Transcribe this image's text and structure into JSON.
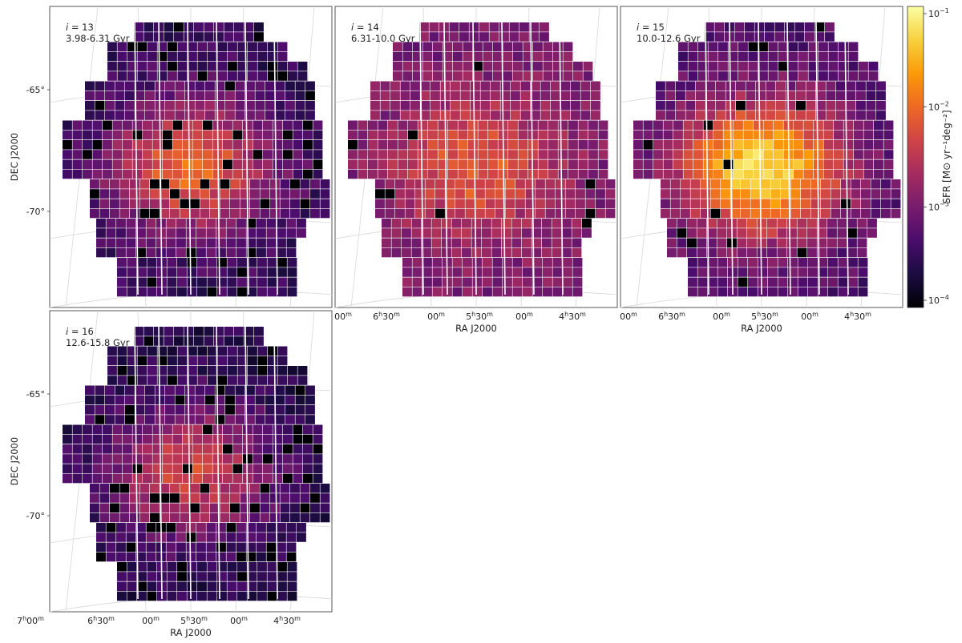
{
  "figure": {
    "axes": {
      "ra_label": "RA J2000",
      "dec_label": "DEC J2000"
    },
    "dec_ticks": [
      "-65°",
      "-70°"
    ],
    "ra_ticks": [
      {
        "h": "7",
        "m": "00"
      },
      {
        "h": "6",
        "m": "30"
      },
      {
        "h": "",
        "m": "00"
      },
      {
        "h": "5",
        "m": "30"
      },
      {
        "h": "",
        "m": "00"
      },
      {
        "h": "4",
        "m": "30"
      }
    ],
    "panels_ra_first_tick_text": "00",
    "colorbar": {
      "label": "SFR [M⊙ yr⁻¹deg⁻²]",
      "scale": "log",
      "ticks": [
        {
          "base": "10",
          "exp": "−1"
        },
        {
          "base": "10",
          "exp": "−2"
        },
        {
          "base": "10",
          "exp": "−3"
        },
        {
          "base": "10",
          "exp": "−4"
        }
      ],
      "colors": [
        "#000004",
        "#1b0c41",
        "#4a0c6b",
        "#781c6d",
        "#a52c60",
        "#cf4446",
        "#ed6925",
        "#fb9b06",
        "#f7d13d",
        "#fcffa4"
      ]
    }
  },
  "chart_data": [
    {
      "type": "heatmap",
      "panel_label": "i = 13",
      "i": "i",
      "i_value": "= 13",
      "age_range": "3.98-6.31 Gyr",
      "peak_log10_sfr": -2.0,
      "hole_fraction": 0.1,
      "bg_log10_sfr": -3.5,
      "peak_bin_note": "",
      "xlabel": "",
      "ylabel": "DEC J2000",
      "clim": [
        0.0001,
        0.1
      ]
    },
    {
      "type": "heatmap",
      "panel_label": "i = 14",
      "i": "i",
      "i_value": "= 14",
      "age_range": "6.31-10.0 Gyr",
      "peak_log10_sfr": -2.1,
      "hole_fraction": 0.015,
      "bg_log10_sfr": -3.0,
      "peak_bin_note": "",
      "xlabel": "RA J2000",
      "ylabel": "",
      "clim": [
        0.0001,
        0.1
      ]
    },
    {
      "type": "heatmap",
      "panel_label": "i = 15",
      "i": "i",
      "i_value": "= 15",
      "age_range": "10.0-12.6 Gyr",
      "peak_log10_sfr": -1.2,
      "hole_fraction": 0.02,
      "bg_log10_sfr": -3.3,
      "peak_bin_note": "",
      "xlabel": "RA J2000",
      "ylabel": "",
      "clim": [
        0.0001,
        0.1
      ]
    },
    {
      "type": "heatmap",
      "panel_label": "i = 16",
      "i": "i",
      "i_value": "= 16",
      "age_range": "12.6-15.8 Gyr",
      "peak_log10_sfr": -2.3,
      "hole_fraction": 0.08,
      "bg_log10_sfr": -3.6,
      "peak_bin_note": "",
      "xlabel": "RA J2000",
      "ylabel": "DEC J2000",
      "clim": [
        0.0001,
        0.1
      ]
    }
  ]
}
